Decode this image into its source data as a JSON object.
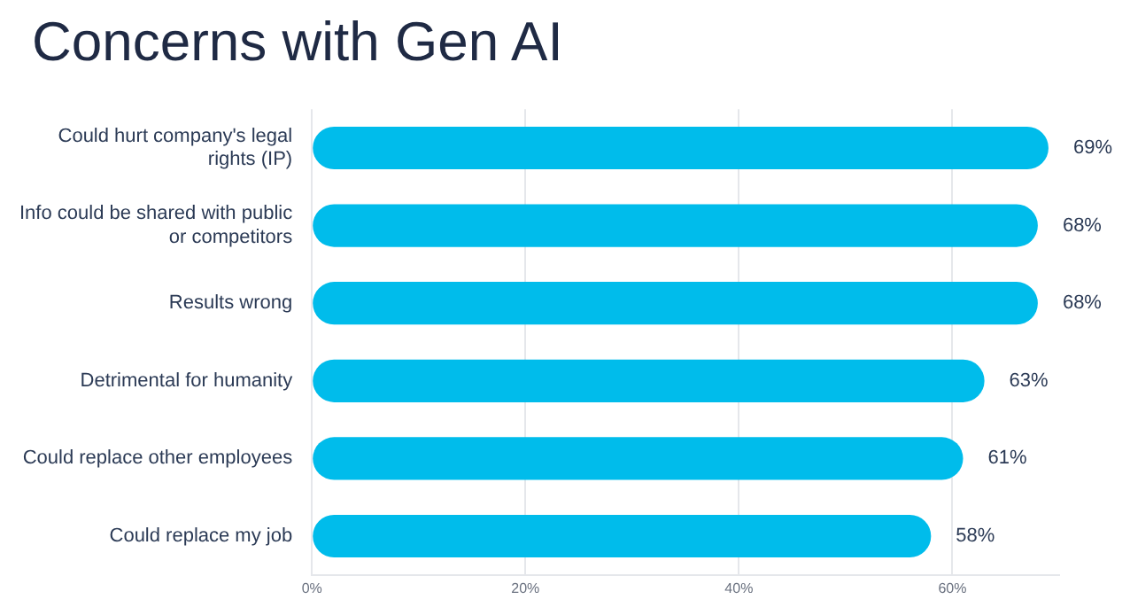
{
  "chart_data": {
    "type": "bar",
    "orientation": "horizontal",
    "title": "Concerns with Gen AI",
    "categories": [
      "Could hurt company's legal rights (IP)",
      "Info could be shared with public or competitors",
      "Results wrong",
      "Detrimental for humanity",
      "Could replace other employees",
      "Could replace my job"
    ],
    "values": [
      69,
      68,
      68,
      63,
      61,
      58
    ],
    "color": "#00bceb",
    "xlim": [
      0,
      70
    ],
    "xticks": [
      {
        "value": 0,
        "label": "0%"
      },
      {
        "value": 20,
        "label": "20%"
      },
      {
        "value": 40,
        "label": "40%"
      },
      {
        "value": 60,
        "label": "60%"
      }
    ],
    "value_labels": [
      "69%",
      "68%",
      "68%",
      "63%",
      "61%",
      "58%"
    ],
    "grid": "x",
    "legend": false
  }
}
